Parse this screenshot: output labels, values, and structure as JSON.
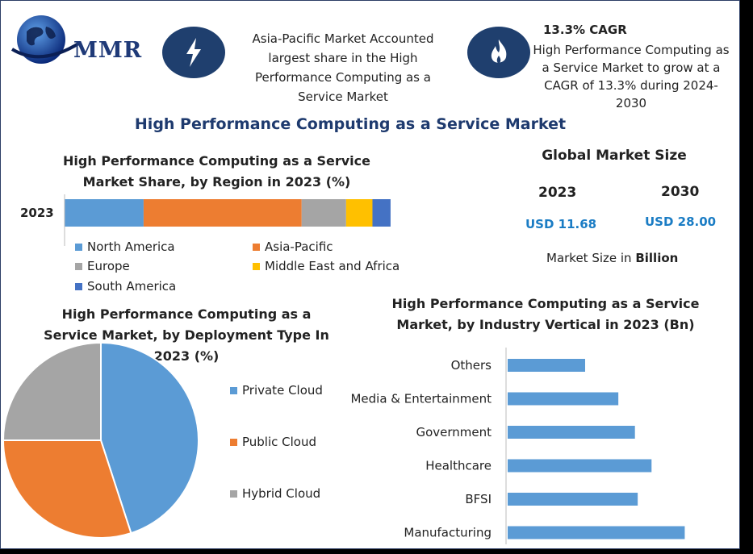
{
  "brand": {
    "logo_text": "MMR"
  },
  "info": {
    "left_text": "Asia-Pacific Market Accounted largest share in the High Performance Computing as a Service Market",
    "cagr_heading": "13.3% CAGR",
    "cagr_text": "High Performance Computing as a Service Market to grow at a CAGR of 13.3% during 2024-2030",
    "icon_left": "lightning-icon",
    "icon_right": "flame-icon"
  },
  "main_title": "High Performance Computing as a Service Market",
  "global_market": {
    "title": "Global Market Size",
    "year1": "2023",
    "value1": "USD 11.68",
    "year2": "2030",
    "value2": "USD 28.00",
    "unit_prefix": "Market Size in ",
    "unit_bold": "Billion"
  },
  "colors": {
    "blue": "#5b9bd5",
    "orange": "#ed7d31",
    "gray": "#a5a5a5",
    "yellow": "#ffc000",
    "darkblue": "#4472c4",
    "navy": "#1f3f6e"
  },
  "chart_data": [
    {
      "type": "bar",
      "orientation": "horizontal-stacked",
      "title": "High Performance Computing as a Service Market Share, by Region in 2023 (%)",
      "categories": [
        "2023"
      ],
      "series": [
        {
          "name": "North America",
          "values": [
            24
          ]
        },
        {
          "name": "Asia-Pacific",
          "values": [
            48
          ]
        },
        {
          "name": "Europe",
          "values": [
            13.5
          ]
        },
        {
          "name": "Middle East and Africa",
          "values": [
            8
          ]
        },
        {
          "name": "South America",
          "values": [
            5.5
          ]
        }
      ],
      "xlim": [
        0,
        100
      ]
    },
    {
      "type": "pie",
      "title": "High Performance Computing as a Service Market, by Deployment Type In 2023 (%)",
      "labels": [
        "Private Cloud",
        "Public Cloud",
        "Hybrid Cloud"
      ],
      "values": [
        45,
        30,
        25
      ]
    },
    {
      "type": "bar",
      "orientation": "horizontal",
      "title": "High Performance Computing as a Service Market, by Industry Vertical in 2023 (Bn)",
      "categories": [
        "Others",
        "Media & Entertainment",
        "Government",
        "Healthcare",
        "BFSI",
        "Manufacturing"
      ],
      "values": [
        1.4,
        2.0,
        2.3,
        2.6,
        2.35,
        3.2
      ],
      "xlim": [
        0,
        3.5
      ]
    }
  ]
}
